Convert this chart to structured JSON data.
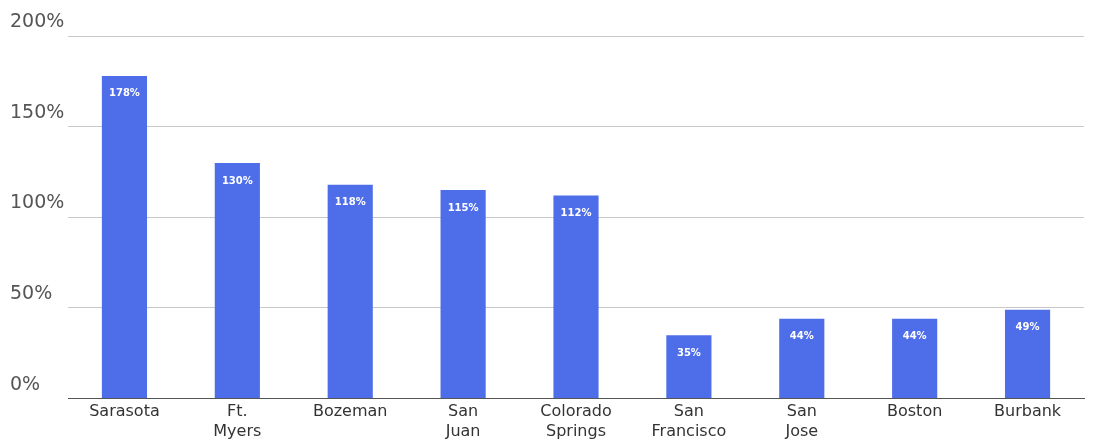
{
  "chart_data": {
    "type": "bar",
    "categories": [
      "Sarasota",
      "Ft. Myers",
      "Bozeman",
      "San Juan",
      "Colorado Springs",
      "San Francisco",
      "San Jose",
      "Boston",
      "Burbank"
    ],
    "values": [
      178,
      130,
      118,
      115,
      112,
      35,
      44,
      44,
      49
    ],
    "color": "#4e6de8",
    "ylim": [
      0,
      200
    ],
    "yticks": [
      {
        "value": 0,
        "label": "0%"
      },
      {
        "value": 50,
        "label": "50%"
      },
      {
        "value": 100,
        "label": "100%"
      },
      {
        "value": 150,
        "label": "150%"
      },
      {
        "value": 200,
        "label": "200%"
      }
    ],
    "value_labels": [
      "178%",
      "130%",
      "118%",
      "115%",
      "112%",
      "35%",
      "44%",
      "44%",
      "49%"
    ],
    "grid": "y",
    "legend": false
  }
}
